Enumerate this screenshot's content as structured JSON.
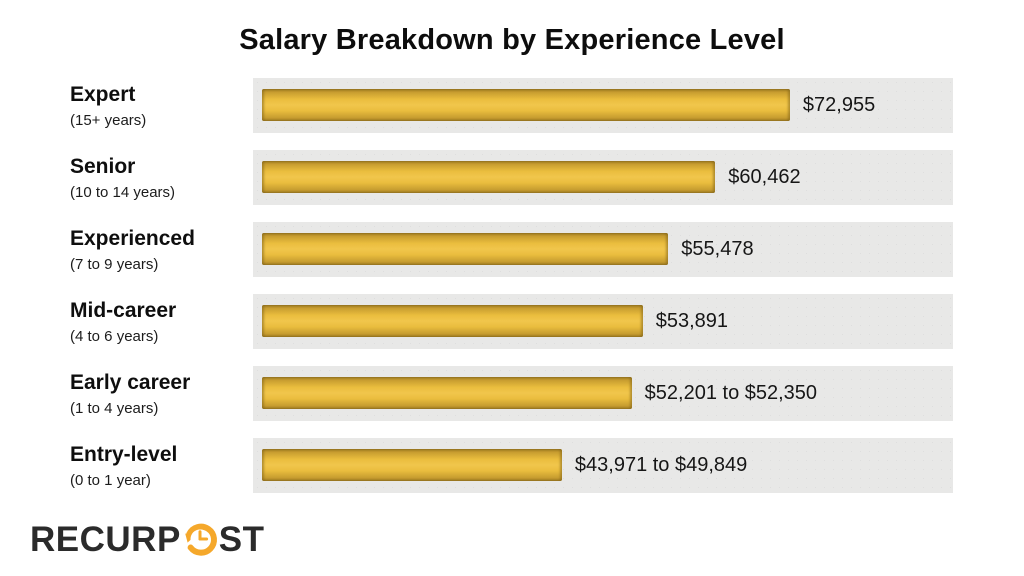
{
  "title": "Salary Breakdown by Experience Level",
  "colors": {
    "background": "#ffffff",
    "track_gray": "#e8e8e7",
    "bar_gold": "#eabd3e",
    "bar_gold_dark": "#a27d24",
    "text_dark": "#0e0e0e",
    "logo_dark": "#2b2b2b",
    "logo_gold": "#f5a82b"
  },
  "chart_data": {
    "type": "bar",
    "orientation": "horizontal",
    "title": "Salary Breakdown by Experience Level",
    "xlabel": "",
    "ylabel": "",
    "xlim": [
      0,
      96000
    ],
    "grid": false,
    "legend": false,
    "categories": [
      "Expert",
      "Senior",
      "Experienced",
      "Mid-career",
      "Early career",
      "Entry-level"
    ],
    "series": [
      {
        "label": "Expert",
        "sublabel": "(15+ years)",
        "value": 72955,
        "value_label": "$72,955",
        "bar_width_pct": 76.4
      },
      {
        "label": "Senior",
        "sublabel": "(10 to 14 years)",
        "value": 60462,
        "value_label": "$60,462",
        "bar_width_pct": 65.6
      },
      {
        "label": "Experienced",
        "sublabel": "(7 to 9 years)",
        "value": 55478,
        "value_label": "$55,478",
        "bar_width_pct": 58.8
      },
      {
        "label": "Mid-career",
        "sublabel": "(4 to 6 years)",
        "value": 53891,
        "value_label": "$53,891",
        "bar_width_pct": 55.1
      },
      {
        "label": "Early career",
        "sublabel": "(1 to 4 years)",
        "value_min": 52201,
        "value_max": 52350,
        "value_label": "$52,201 to $52,350",
        "bar_width_pct": 53.5
      },
      {
        "label": "Entry-level",
        "sublabel": "(0 to 1 year)",
        "value_min": 43971,
        "value_max": 49849,
        "value_label": "$43,971 to $49,849",
        "bar_width_pct": 43.4
      }
    ]
  },
  "logo": {
    "text_left": "RECURP",
    "text_right": "ST",
    "icon": "clock-history-icon"
  }
}
